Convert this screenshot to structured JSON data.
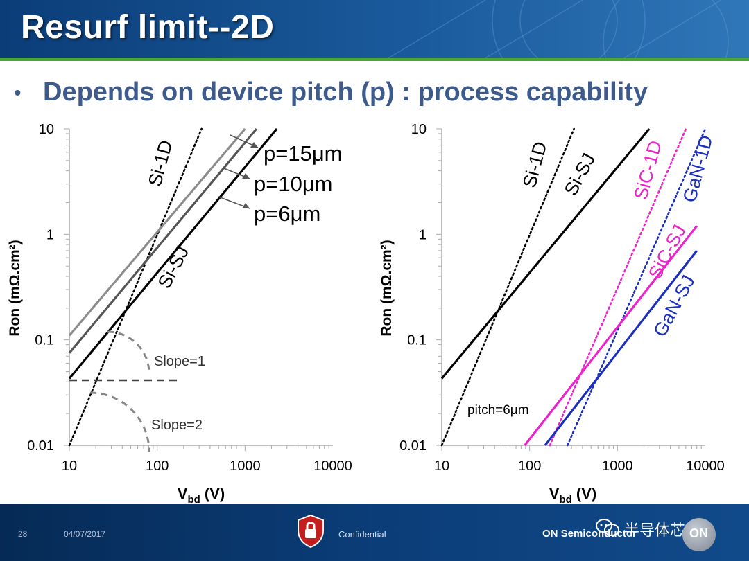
{
  "slide": {
    "title": "Resurf limit--2D",
    "bullet": "Depends on device pitch (p) : process capability"
  },
  "footer": {
    "page": "28",
    "date": "04/07/2017",
    "confidential": "Confidential",
    "brand": "ON Semiconductor",
    "watermark": "半导体芯",
    "logo_text": "ON"
  },
  "colors": {
    "header": "#0b3d78",
    "accent_green": "#4aa832",
    "bullet_text": "#3d5a8a",
    "si": "#000000",
    "p15": "#8c8c8c",
    "p10": "#555555",
    "sic": "#ee22cc",
    "gan": "#1a2fbf",
    "guide": "#888888"
  },
  "chart_data": [
    {
      "type": "line",
      "xscale": "log",
      "yscale": "log",
      "xlim": [
        10,
        10000
      ],
      "ylim": [
        0.01,
        10
      ],
      "xticks": [
        "10",
        "100",
        "1000",
        "10000"
      ],
      "yticks": [
        "10",
        "1",
        "0.1",
        "0.01"
      ],
      "xlabel_main": "V",
      "xlabel_sub": "bd",
      "xlabel_unit": " (V)",
      "ylabel": "Ron (mΩ.cm²)",
      "series": [
        {
          "key": "si1d",
          "name": "Si-1D",
          "style": "dotted",
          "color": "#000000",
          "x": [
            10,
            320
          ],
          "y": [
            0.01,
            10
          ]
        },
        {
          "key": "p15",
          "name": "p=15μm",
          "style": "solid",
          "color": "#8c8c8c",
          "x": [
            10,
            1000
          ],
          "y": [
            0.11,
            10
          ]
        },
        {
          "key": "p10",
          "name": "p=10μm",
          "style": "solid",
          "color": "#555555",
          "x": [
            10,
            1350
          ],
          "y": [
            0.075,
            10
          ]
        },
        {
          "key": "p6",
          "name": "p=6μm",
          "style": "solid",
          "color": "#000000",
          "x": [
            10,
            2300
          ],
          "y": [
            0.043,
            10
          ]
        }
      ],
      "labels": {
        "si1d": "Si-1D",
        "sisj": "Si-SJ",
        "p15": "p=15μm",
        "p10": "p=10μm",
        "p6": "p=6μm",
        "slope1": "Slope=1",
        "slope2": "Slope=2"
      }
    },
    {
      "type": "line",
      "xscale": "log",
      "yscale": "log",
      "xlim": [
        10,
        10000
      ],
      "ylim": [
        0.01,
        10
      ],
      "xticks": [
        "10",
        "100",
        "1000",
        "10000"
      ],
      "yticks": [
        "10",
        "1",
        "0.1",
        "0.01"
      ],
      "xlabel_main": "V",
      "xlabel_sub": "bd",
      "xlabel_unit": " (V)",
      "ylabel": "Ron (mΩ.cm²)",
      "series": [
        {
          "key": "si1d",
          "name": "Si-1D",
          "style": "dotted",
          "color": "#000000",
          "x": [
            10,
            320
          ],
          "y": [
            0.01,
            10
          ]
        },
        {
          "key": "sisj",
          "name": "Si-SJ",
          "style": "solid",
          "color": "#000000",
          "x": [
            10,
            2300
          ],
          "y": [
            0.043,
            10
          ]
        },
        {
          "key": "sic1d",
          "name": "SiC-1D",
          "style": "dotted",
          "color": "#ee22cc",
          "x": [
            170,
            6000
          ],
          "y": [
            0.01,
            10
          ]
        },
        {
          "key": "gan1d",
          "name": "GaN-1D",
          "style": "dotted",
          "color": "#1a2fbf",
          "x": [
            270,
            10000
          ],
          "y": [
            0.01,
            10
          ]
        },
        {
          "key": "sicsj",
          "name": "SiC-SJ",
          "style": "solid",
          "color": "#ee22cc",
          "x": [
            88,
            8000
          ],
          "y": [
            0.01,
            1.2
          ]
        },
        {
          "key": "gansj",
          "name": "GaN-SJ",
          "style": "solid",
          "color": "#1a2fbf",
          "x": [
            150,
            8000
          ],
          "y": [
            0.01,
            0.7
          ]
        }
      ],
      "labels": {
        "si1d": "Si-1D",
        "sisj": "Si-SJ",
        "sic1d": "SiC-1D",
        "gan1d": "GaN-1D",
        "sicsj": "SiC-SJ",
        "gansj": "GaN-SJ",
        "pitch": "pitch=6μm"
      }
    }
  ]
}
